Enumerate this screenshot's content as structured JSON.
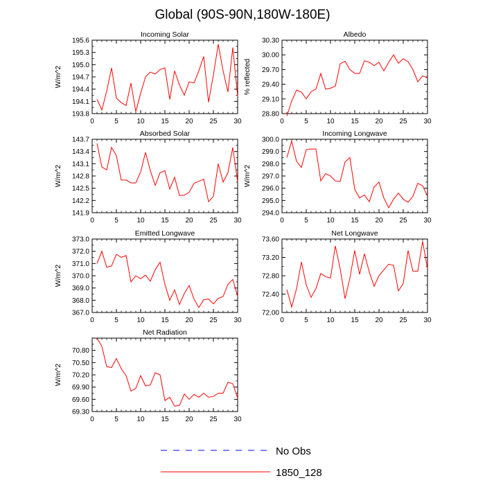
{
  "figure": {
    "title": "Global (90S-90N,180W-180E)"
  },
  "colors": {
    "model": "#ff0000",
    "obs": "#0000ff",
    "axis": "#000000",
    "background": "#ffffff"
  },
  "legend": {
    "obs_label": "No Obs",
    "model_label": "1850_128"
  },
  "chart_data": [
    {
      "type": "line",
      "title": "Incoming Solar",
      "xlabel": "",
      "ylabel": "W/m^2",
      "xlim": [
        0,
        30
      ],
      "ylim": [
        193.8,
        195.6
      ],
      "xticks": [
        0,
        5,
        10,
        15,
        20,
        25,
        30
      ],
      "yticks": [
        "193.8",
        "194.1",
        "194.4",
        "194.7",
        "195.0",
        "195.3",
        "195.6"
      ],
      "series": [
        {
          "name": "1850_128",
          "x": [
            1,
            2,
            3,
            4,
            5,
            6,
            7,
            8,
            9,
            10,
            11,
            12,
            13,
            14,
            15,
            16,
            17,
            18,
            19,
            20,
            21,
            22,
            23,
            24,
            25,
            26,
            27,
            28,
            29,
            30
          ],
          "y": [
            194.15,
            193.89,
            194.35,
            194.92,
            194.18,
            194.07,
            194.0,
            194.55,
            193.85,
            194.3,
            194.7,
            194.82,
            194.77,
            194.88,
            194.92,
            194.15,
            194.85,
            194.5,
            194.25,
            194.58,
            194.55,
            194.85,
            195.2,
            194.08,
            194.75,
            195.5,
            194.85,
            194.33,
            195.42,
            194.22
          ]
        }
      ]
    },
    {
      "type": "line",
      "title": "Albedo",
      "xlabel": "",
      "ylabel": "% reflected",
      "xlim": [
        0,
        30
      ],
      "ylim": [
        28.8,
        30.3
      ],
      "xticks": [
        0,
        5,
        10,
        15,
        20,
        25,
        30
      ],
      "yticks": [
        "28.80",
        "29.10",
        "29.40",
        "29.70",
        "30.00",
        "30.30"
      ],
      "series": [
        {
          "name": "1850_128",
          "x": [
            1,
            2,
            3,
            4,
            5,
            6,
            7,
            8,
            9,
            10,
            11,
            12,
            13,
            14,
            15,
            16,
            17,
            18,
            19,
            20,
            21,
            22,
            23,
            24,
            25,
            26,
            27,
            28,
            29,
            30
          ],
          "y": [
            28.75,
            29.06,
            29.28,
            29.24,
            29.1,
            29.25,
            29.3,
            29.62,
            29.3,
            29.32,
            29.36,
            29.82,
            29.87,
            29.7,
            29.62,
            29.62,
            29.88,
            29.85,
            29.78,
            29.85,
            29.67,
            29.85,
            30.0,
            29.83,
            29.92,
            29.86,
            29.7,
            29.45,
            29.57,
            29.53
          ]
        }
      ]
    },
    {
      "type": "line",
      "title": "Absorbed Solar",
      "xlabel": "",
      "ylabel": "W/m^2",
      "xlim": [
        0,
        30
      ],
      "ylim": [
        141.9,
        143.7
      ],
      "xticks": [
        0,
        5,
        10,
        15,
        20,
        25,
        30
      ],
      "yticks": [
        "141.9",
        "142.2",
        "142.5",
        "142.8",
        "143.1",
        "143.4",
        "143.7"
      ],
      "series": [
        {
          "name": "1850_128",
          "x": [
            1,
            2,
            3,
            4,
            5,
            6,
            7,
            8,
            9,
            10,
            11,
            12,
            13,
            14,
            15,
            16,
            17,
            18,
            19,
            20,
            21,
            22,
            23,
            24,
            25,
            26,
            27,
            28,
            29,
            30
          ],
          "y": [
            143.6,
            143.02,
            142.95,
            143.5,
            143.3,
            142.7,
            142.7,
            142.63,
            142.63,
            142.9,
            143.38,
            142.93,
            142.57,
            142.88,
            142.93,
            142.48,
            142.77,
            142.32,
            142.33,
            142.4,
            142.62,
            142.67,
            142.72,
            142.17,
            142.3,
            143.1,
            142.65,
            142.88,
            143.5,
            142.65
          ]
        }
      ]
    },
    {
      "type": "line",
      "title": "Incoming Longwave",
      "xlabel": "",
      "ylabel": "W/m^2",
      "xlim": [
        0,
        30
      ],
      "ylim": [
        294.0,
        300.0
      ],
      "xticks": [
        0,
        5,
        10,
        15,
        20,
        25,
        30
      ],
      "yticks": [
        "294.0",
        "295.0",
        "296.0",
        "297.0",
        "298.0",
        "299.0",
        "300.0"
      ],
      "series": [
        {
          "name": "1850_128",
          "x": [
            1,
            2,
            3,
            4,
            5,
            6,
            7,
            8,
            9,
            10,
            11,
            12,
            13,
            14,
            15,
            16,
            17,
            18,
            19,
            20,
            21,
            22,
            23,
            24,
            25,
            26,
            27,
            28,
            29,
            30
          ],
          "y": [
            298.5,
            299.85,
            298.2,
            297.7,
            299.15,
            299.2,
            299.2,
            296.6,
            297.2,
            297.0,
            296.6,
            296.55,
            298.15,
            298.5,
            295.9,
            295.2,
            295.45,
            294.9,
            296.1,
            296.5,
            295.2,
            294.4,
            295.1,
            295.6,
            295.1,
            294.85,
            295.35,
            296.4,
            296.2,
            295.35
          ]
        }
      ]
    },
    {
      "type": "line",
      "title": "Emitted Longwave",
      "xlabel": "",
      "ylabel": "W/m^2",
      "xlim": [
        0,
        30
      ],
      "ylim": [
        367.0,
        373.0
      ],
      "xticks": [
        0,
        5,
        10,
        15,
        20,
        25,
        30
      ],
      "yticks": [
        "367.0",
        "368.0",
        "369.0",
        "370.0",
        "371.0",
        "372.0",
        "373.0"
      ],
      "series": [
        {
          "name": "1850_128",
          "x": [
            1,
            2,
            3,
            4,
            5,
            6,
            7,
            8,
            9,
            10,
            11,
            12,
            13,
            14,
            15,
            16,
            17,
            18,
            19,
            20,
            21,
            22,
            23,
            24,
            25,
            26,
            27,
            28,
            29,
            30
          ],
          "y": [
            371.0,
            372.0,
            370.7,
            370.8,
            371.75,
            371.5,
            371.65,
            369.5,
            370.0,
            369.75,
            370.05,
            369.55,
            370.5,
            371.1,
            369.3,
            368.0,
            368.85,
            367.65,
            368.55,
            369.2,
            368.1,
            367.4,
            368.05,
            368.1,
            367.7,
            368.15,
            368.3,
            369.3,
            369.7,
            368.3
          ]
        }
      ]
    },
    {
      "type": "line",
      "title": "Net Longwave",
      "xlabel": "",
      "ylabel": "",
      "xlim": [
        0,
        30
      ],
      "ylim": [
        72.0,
        73.6
      ],
      "xticks": [
        0,
        5,
        10,
        15,
        20,
        25,
        30
      ],
      "yticks": [
        "72.00",
        "72.40",
        "72.80",
        "73.20",
        "73.60"
      ],
      "series": [
        {
          "name": "1850_128",
          "x": [
            1,
            2,
            3,
            4,
            5,
            6,
            7,
            8,
            9,
            10,
            11,
            12,
            13,
            14,
            15,
            16,
            17,
            18,
            19,
            20,
            21,
            22,
            23,
            24,
            25,
            26,
            27,
            28,
            29,
            30
          ],
          "y": [
            72.5,
            72.12,
            72.52,
            73.1,
            72.6,
            72.33,
            72.52,
            72.85,
            72.78,
            72.75,
            73.45,
            72.95,
            72.3,
            72.75,
            73.35,
            72.83,
            73.28,
            72.88,
            72.57,
            72.8,
            72.93,
            73.05,
            73.03,
            72.47,
            72.63,
            73.35,
            72.9,
            72.9,
            73.55,
            72.95
          ]
        }
      ]
    },
    {
      "type": "line",
      "title": "Net Radiation",
      "xlabel": "",
      "ylabel": "W/m^2",
      "xlim": [
        0,
        30
      ],
      "ylim": [
        69.3,
        71.1
      ],
      "xticks": [
        0,
        5,
        10,
        15,
        20,
        25,
        30
      ],
      "yticks": [
        "69.30",
        "69.60",
        "69.90",
        "70.20",
        "70.50",
        "70.80"
      ],
      "series": [
        {
          "name": "1850_128",
          "x": [
            1,
            2,
            3,
            4,
            5,
            6,
            7,
            8,
            9,
            10,
            11,
            12,
            13,
            14,
            15,
            16,
            17,
            18,
            19,
            20,
            21,
            22,
            23,
            24,
            25,
            26,
            27,
            28,
            29,
            30
          ],
          "y": [
            71.1,
            70.9,
            70.4,
            70.38,
            70.6,
            70.35,
            70.18,
            69.8,
            69.87,
            70.18,
            69.93,
            69.95,
            70.25,
            70.2,
            69.57,
            69.65,
            69.43,
            69.45,
            69.73,
            69.6,
            69.72,
            69.65,
            69.75,
            69.65,
            69.67,
            69.75,
            69.75,
            70.02,
            69.98,
            69.63
          ]
        }
      ]
    }
  ]
}
